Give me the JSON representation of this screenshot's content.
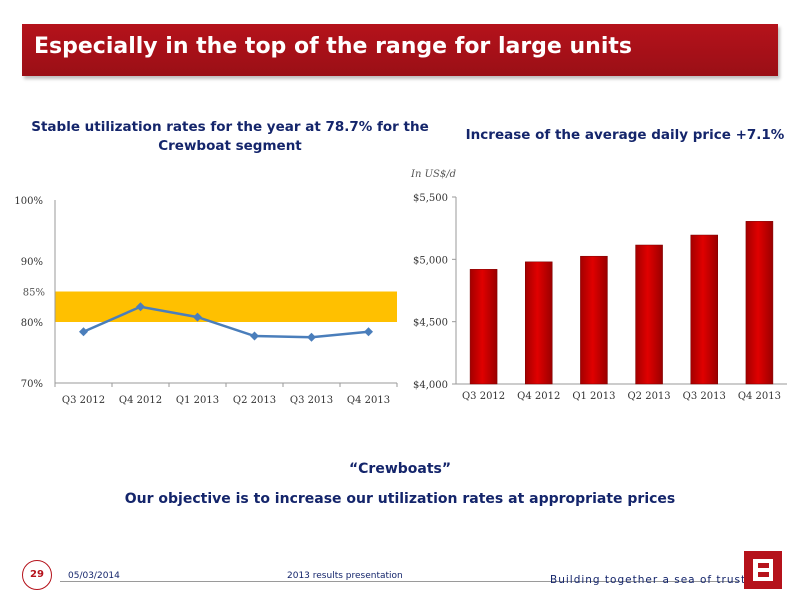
{
  "header": {
    "title": "Especially in the top of the range for large units"
  },
  "left_chart_title": "Stable utilization rates for the year at 78.7% for the Crewboat segment",
  "right_chart_title": "Increase of the average daily price +7.1%",
  "subtitle_1": "“Crewboats”",
  "subtitle_2": "Our objective is to increase our utilization rates at appropriate prices",
  "footer": {
    "page_number": "29",
    "date": "05/03/2014",
    "center": "2013 results presentation",
    "slogan": "Building together a sea of trust"
  },
  "colors": {
    "brand": "#b5121b",
    "navy": "#14256b",
    "line": "#4a7ebb",
    "band": "#ffc000",
    "bar": "#cc0000"
  },
  "chart_data": [
    {
      "type": "line",
      "categories": [
        "Q3 2012",
        "Q4 2012",
        "Q1 2013",
        "Q2 2013",
        "Q3 2013",
        "Q4 2013"
      ],
      "series": [
        {
          "values": [
            78.4,
            82.5,
            80.8,
            77.7,
            77.5,
            78.4
          ]
        }
      ],
      "y_ticks": [
        "100%",
        "90%",
        "80%",
        "70%"
      ],
      "band": {
        "from": 80,
        "to": 85,
        "label": "85%"
      },
      "ylim": [
        70,
        100
      ],
      "grid": false,
      "marker": "diamond"
    },
    {
      "type": "bar",
      "categories": [
        "Q3 2012",
        "Q4 2012",
        "Q1 2013",
        "Q2 2013",
        "Q3  2013",
        "Q4 2013"
      ],
      "values": [
        4920,
        4980,
        5025,
        5115,
        5195,
        5305
      ],
      "unit_label": "In US$/d",
      "y_ticks": [
        "$5,500",
        "$5,000",
        "$4,500",
        "$4,000"
      ],
      "ylim": [
        4000,
        5500
      ],
      "grid": false
    }
  ]
}
